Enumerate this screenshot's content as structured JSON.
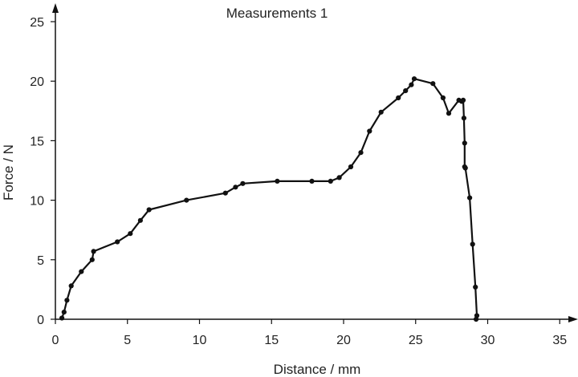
{
  "chart_data": {
    "type": "line",
    "title": "Measurements 1",
    "xlabel": "Distance / mm",
    "ylabel": "Force / N",
    "xlim": [
      0,
      35
    ],
    "ylim": [
      0,
      25
    ],
    "xticks": [
      "0",
      "5",
      "10",
      "15",
      "20",
      "25",
      "30",
      "35"
    ],
    "yticks": [
      "0",
      "5",
      "10",
      "15",
      "20",
      "25"
    ],
    "grid": false,
    "legend": "none",
    "series": [
      {
        "color": "#111111",
        "marker": "circle",
        "x": [
          0.45,
          0.6,
          0.8,
          1.1,
          1.8,
          2.55,
          2.65,
          4.3,
          5.2,
          5.9,
          6.5,
          9.1,
          11.8,
          12.5,
          13.0,
          15.4,
          17.8,
          19.1,
          19.7,
          20.5,
          21.2,
          21.8,
          22.6,
          23.8,
          24.3,
          24.7,
          24.9,
          26.2,
          26.9,
          27.3,
          28.0,
          28.2,
          28.3,
          28.35,
          28.4,
          28.4,
          28.45,
          28.75,
          28.95,
          29.15,
          29.25,
          29.2
        ],
        "y": [
          0.1,
          0.6,
          1.6,
          2.8,
          4.0,
          5.0,
          5.7,
          6.5,
          7.2,
          8.3,
          9.2,
          10.0,
          10.6,
          11.1,
          11.4,
          11.6,
          11.6,
          11.6,
          11.9,
          12.8,
          14.0,
          15.8,
          17.4,
          18.6,
          19.2,
          19.7,
          20.2,
          19.8,
          18.6,
          17.3,
          18.4,
          18.3,
          18.4,
          16.9,
          14.8,
          12.8,
          12.7,
          10.2,
          6.3,
          2.7,
          0.3,
          0.0
        ]
      }
    ]
  }
}
